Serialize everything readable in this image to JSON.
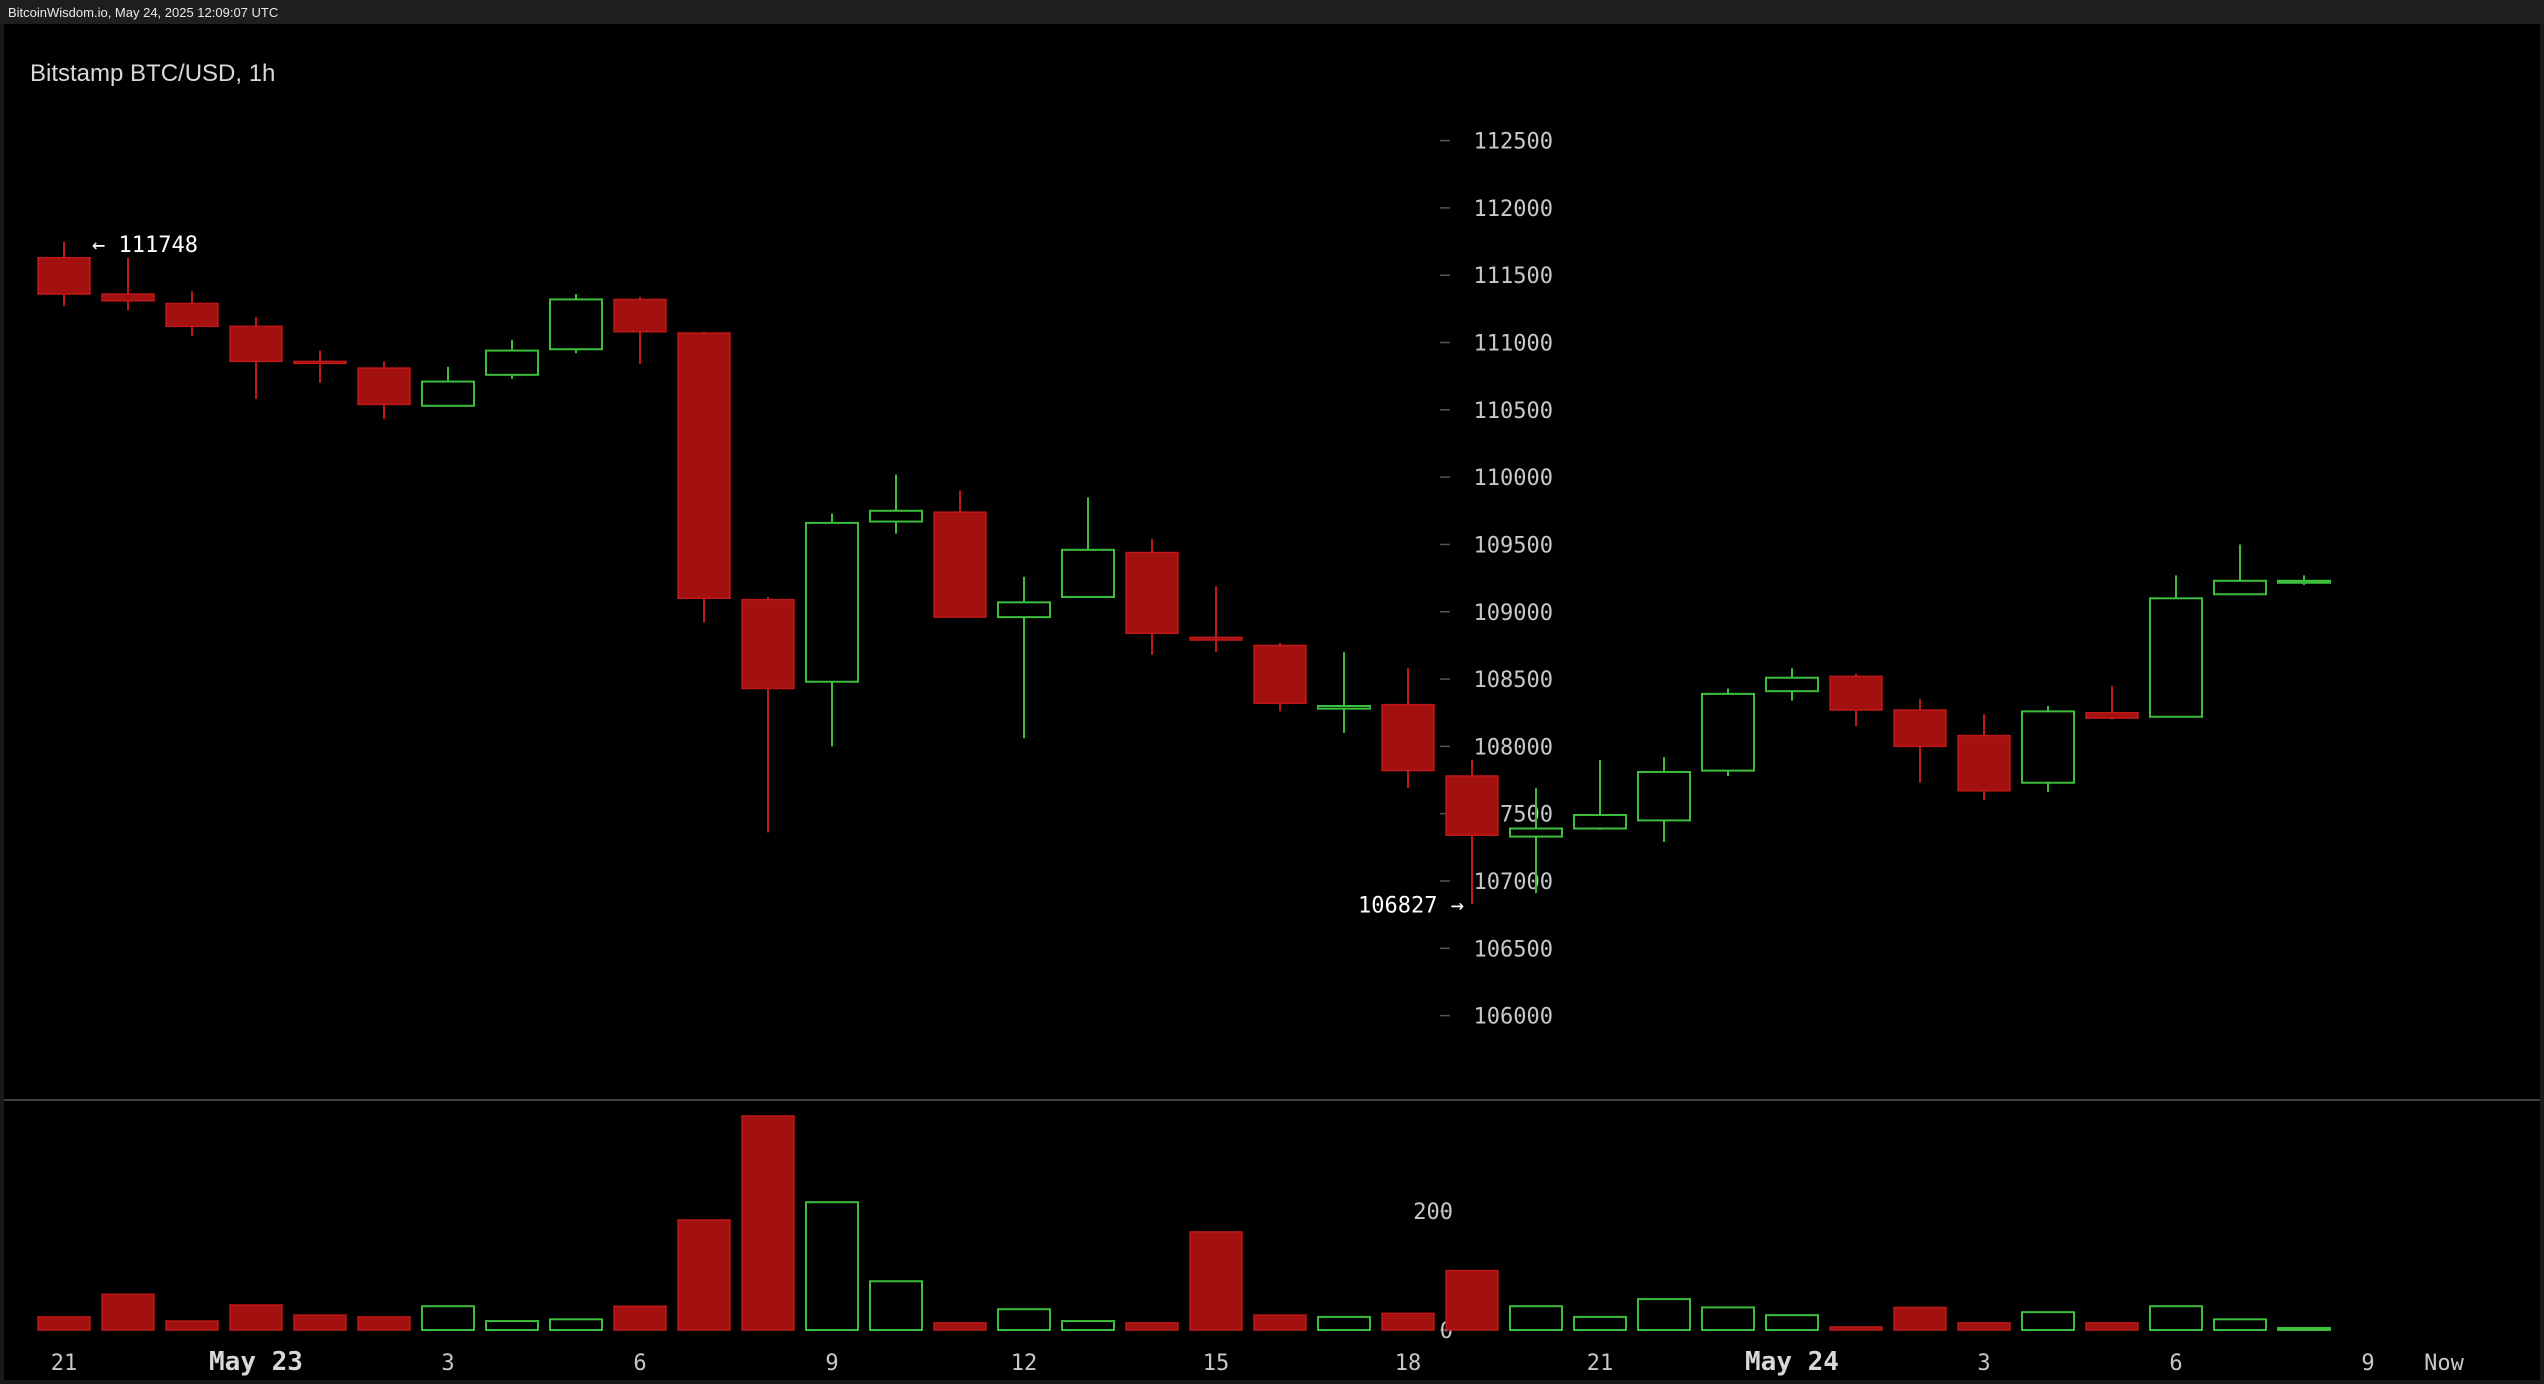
{
  "header": {
    "text": "BitcoinWisdom.io, May 24, 2025 12:09:07 UTC"
  },
  "chart_data": {
    "type": "candlestick",
    "title": "Bitstamp BTC/USD, 1h",
    "colors": {
      "up": "#3cbf3c",
      "down": "#a31010",
      "down_edge": "#c01818",
      "background": "#000000",
      "axis_text": "#c8c8c8",
      "separator": "#5a5a5a"
    },
    "price_axis": {
      "range": [
        105700,
        112950
      ],
      "ticks": [
        106000,
        106500,
        107000,
        107500,
        108000,
        108500,
        109000,
        109500,
        110000,
        110500,
        111000,
        111500,
        112000,
        112500
      ],
      "tick_labels": [
        "106000",
        "106500",
        "107000",
        "107500",
        "108000",
        "108500",
        "109000",
        "109500",
        "110000",
        "110500",
        "111000",
        "111500",
        "112000",
        "112500"
      ]
    },
    "volume_axis": {
      "range": [
        0,
        360
      ],
      "ticks": [
        0,
        200
      ],
      "tick_labels": [
        "0",
        "200"
      ]
    },
    "x_axis": {
      "ticks": [
        {
          "i": 0,
          "label": "21",
          "bold": false
        },
        {
          "i": 3,
          "label": "May 23",
          "bold": true
        },
        {
          "i": 6,
          "label": "3",
          "bold": false
        },
        {
          "i": 9,
          "label": "6",
          "bold": false
        },
        {
          "i": 12,
          "label": "9",
          "bold": false
        },
        {
          "i": 15,
          "label": "12",
          "bold": false
        },
        {
          "i": 18,
          "label": "15",
          "bold": false
        },
        {
          "i": 21,
          "label": "18",
          "bold": false
        },
        {
          "i": 24,
          "label": "21",
          "bold": false
        },
        {
          "i": 27,
          "label": "May 24",
          "bold": true
        },
        {
          "i": 30,
          "label": "3",
          "bold": false
        },
        {
          "i": 33,
          "label": "6",
          "bold": false
        },
        {
          "i": 36,
          "label": "9",
          "bold": false
        }
      ],
      "now_label": "Now"
    },
    "annotations": {
      "high": {
        "value": 111748,
        "candle": 0,
        "text": "← 111748"
      },
      "low": {
        "value": 106827,
        "candle": 22,
        "text": "106827 →"
      }
    },
    "candles": [
      {
        "o": 111630,
        "h": 111748,
        "l": 111270,
        "c": 111360,
        "v": 22
      },
      {
        "o": 111360,
        "h": 111630,
        "l": 111240,
        "c": 111310,
        "v": 60
      },
      {
        "o": 111290,
        "h": 111380,
        "l": 111050,
        "c": 111120,
        "v": 15
      },
      {
        "o": 111120,
        "h": 111190,
        "l": 110580,
        "c": 110860,
        "v": 42
      },
      {
        "o": 110860,
        "h": 110940,
        "l": 110700,
        "c": 110850,
        "v": 25
      },
      {
        "o": 110810,
        "h": 110860,
        "l": 110430,
        "c": 110540,
        "v": 22
      },
      {
        "o": 110530,
        "h": 110820,
        "l": 110530,
        "c": 110710,
        "v": 40
      },
      {
        "o": 110760,
        "h": 111020,
        "l": 110730,
        "c": 110940,
        "v": 15
      },
      {
        "o": 110950,
        "h": 111360,
        "l": 110920,
        "c": 111320,
        "v": 18
      },
      {
        "o": 111320,
        "h": 111340,
        "l": 110840,
        "c": 111080,
        "v": 40
      },
      {
        "o": 111070,
        "h": 111080,
        "l": 108920,
        "c": 109100,
        "v": 185
      },
      {
        "o": 109090,
        "h": 109110,
        "l": 107360,
        "c": 108430,
        "v": 360
      },
      {
        "o": 108480,
        "h": 109730,
        "l": 108000,
        "c": 109660,
        "v": 215
      },
      {
        "o": 109670,
        "h": 110020,
        "l": 109580,
        "c": 109750,
        "v": 82
      },
      {
        "o": 109740,
        "h": 109900,
        "l": 108960,
        "c": 108960,
        "v": 12
      },
      {
        "o": 108960,
        "h": 109260,
        "l": 108060,
        "c": 109070,
        "v": 35
      },
      {
        "o": 109110,
        "h": 109850,
        "l": 109110,
        "c": 109460,
        "v": 15
      },
      {
        "o": 109440,
        "h": 109540,
        "l": 108680,
        "c": 108840,
        "v": 12
      },
      {
        "o": 108810,
        "h": 109190,
        "l": 108700,
        "c": 108790,
        "v": 165
      },
      {
        "o": 108750,
        "h": 108770,
        "l": 108260,
        "c": 108320,
        "v": 25
      },
      {
        "o": 108280,
        "h": 108700,
        "l": 108100,
        "c": 108300,
        "v": 22
      },
      {
        "o": 108310,
        "h": 108580,
        "l": 107690,
        "c": 107820,
        "v": 28
      },
      {
        "o": 107780,
        "h": 107900,
        "l": 106827,
        "c": 107340,
        "v": 100
      },
      {
        "o": 107330,
        "h": 107690,
        "l": 106910,
        "c": 107390,
        "v": 40
      },
      {
        "o": 107390,
        "h": 107900,
        "l": 107380,
        "c": 107490,
        "v": 22
      },
      {
        "o": 107450,
        "h": 107920,
        "l": 107290,
        "c": 107810,
        "v": 52
      },
      {
        "o": 107820,
        "h": 108430,
        "l": 107780,
        "c": 108390,
        "v": 38
      },
      {
        "o": 108410,
        "h": 108580,
        "l": 108340,
        "c": 108510,
        "v": 25
      },
      {
        "o": 108520,
        "h": 108540,
        "l": 108150,
        "c": 108270,
        "v": 5
      },
      {
        "o": 108270,
        "h": 108350,
        "l": 107730,
        "c": 108000,
        "v": 38
      },
      {
        "o": 108080,
        "h": 108240,
        "l": 107600,
        "c": 107670,
        "v": 12
      },
      {
        "o": 107730,
        "h": 108300,
        "l": 107660,
        "c": 108260,
        "v": 30
      },
      {
        "o": 108250,
        "h": 108450,
        "l": 108200,
        "c": 108210,
        "v": 12
      },
      {
        "o": 108220,
        "h": 109270,
        "l": 108220,
        "c": 109100,
        "v": 40
      },
      {
        "o": 109130,
        "h": 109500,
        "l": 109130,
        "c": 109230,
        "v": 18
      },
      {
        "o": 109230,
        "h": 109270,
        "l": 109200,
        "c": 109230,
        "v": 1
      }
    ]
  }
}
